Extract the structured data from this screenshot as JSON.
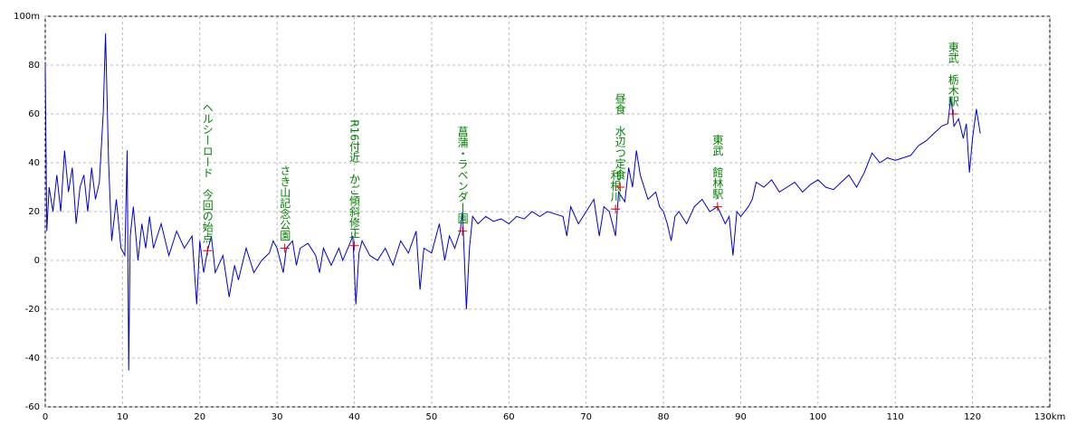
{
  "chart_data": {
    "type": "line",
    "xlim": [
      0,
      130
    ],
    "ylim": [
      -60,
      100
    ],
    "xticks": [
      0,
      10,
      20,
      30,
      40,
      50,
      60,
      70,
      80,
      90,
      100,
      110,
      120,
      {
        "value": 130,
        "label": "130km"
      }
    ],
    "yticks": [
      -60,
      -40,
      -20,
      0,
      20,
      40,
      60,
      80,
      {
        "value": 100,
        "label": "100m"
      }
    ],
    "grid": true,
    "series": [
      {
        "color": "#0000cc",
        "x": [
          0,
          0.2,
          0.5,
          1,
          1.5,
          2,
          2.5,
          3,
          3.5,
          4,
          4.5,
          5,
          5.5,
          6,
          6.5,
          7,
          7.5,
          7.8,
          8.2,
          8.6,
          9.2,
          9.8,
          10.3,
          10.6,
          10.8,
          11,
          11.4,
          12,
          12.5,
          13,
          13.5,
          14,
          15,
          16,
          17,
          18,
          19,
          19.6,
          20,
          20.5,
          21,
          21.5,
          22,
          23,
          23.8,
          24.5,
          25,
          26,
          27,
          28,
          29,
          29.5,
          30,
          30.8,
          31.2,
          32,
          32.5,
          33,
          34,
          35,
          35.5,
          36,
          37,
          38,
          38.5,
          39.3,
          39.8,
          40.2,
          40.6,
          41,
          42,
          43,
          44,
          45,
          46,
          47,
          48,
          48.5,
          49,
          50,
          51,
          51.7,
          52.3,
          53,
          53.7,
          54,
          54.5,
          54.9,
          55.3,
          56,
          57,
          58,
          59,
          60,
          61,
          62,
          63,
          64,
          65,
          66,
          67,
          67.5,
          68,
          69,
          70,
          71,
          71.7,
          72.3,
          73,
          73.8,
          74.2,
          75,
          75.5,
          76,
          76.5,
          77,
          77.5,
          78,
          79,
          79.5,
          80,
          80.5,
          81,
          81.5,
          82,
          83,
          84,
          85,
          86,
          87,
          88,
          88.5,
          89,
          89.5,
          90,
          91,
          91.5,
          92,
          93,
          94,
          95,
          96,
          97,
          98,
          99,
          100,
          101,
          102,
          103,
          104,
          105,
          106,
          107,
          108,
          109,
          110,
          111,
          112,
          113,
          114,
          115,
          116,
          116.8,
          117.2,
          117.6,
          118.2,
          118.8,
          119.2,
          119.6,
          120,
          120.5,
          121
        ],
        "values": [
          80,
          12,
          30,
          20,
          35,
          20,
          45,
          28,
          38,
          15,
          30,
          35,
          20,
          38,
          25,
          32,
          60,
          93,
          40,
          8,
          25,
          5,
          2,
          45,
          -45,
          10,
          22,
          0,
          15,
          5,
          18,
          5,
          15,
          2,
          12,
          5,
          10,
          -18,
          8,
          -5,
          4,
          10,
          -5,
          2,
          -15,
          -2,
          -8,
          5,
          -5,
          0,
          3,
          8,
          5,
          -5,
          5,
          8,
          -2,
          5,
          7,
          2,
          -5,
          5,
          -2,
          5,
          0,
          6,
          10,
          -18,
          3,
          8,
          2,
          0,
          5,
          -2,
          8,
          3,
          12,
          -12,
          5,
          3,
          15,
          0,
          10,
          5,
          12,
          20,
          -20,
          5,
          18,
          15,
          18,
          16,
          17,
          15,
          18,
          17,
          20,
          18,
          20,
          19,
          18,
          10,
          22,
          15,
          20,
          25,
          10,
          22,
          20,
          10,
          28,
          24,
          38,
          30,
          45,
          35,
          30,
          25,
          28,
          22,
          20,
          15,
          8,
          18,
          20,
          15,
          22,
          25,
          20,
          22,
          15,
          18,
          2,
          20,
          18,
          22,
          25,
          32,
          30,
          33,
          28,
          30,
          32,
          28,
          31,
          33,
          30,
          29,
          32,
          35,
          30,
          36,
          44,
          40,
          42,
          41,
          42,
          43,
          47,
          49,
          52,
          55,
          56,
          67,
          55,
          58,
          50,
          56,
          36,
          50,
          62,
          52
        ]
      }
    ],
    "annotations": [
      {
        "text": "ヘルシーロード　今回の始点",
        "x": 21,
        "y": 4
      },
      {
        "text": "さき山記念公園",
        "x": 31,
        "y": 5
      },
      {
        "text": "R16付近　かご傾斜修正",
        "x": 40,
        "y": 6
      },
      {
        "text": "菖蒲・ラベンダー園",
        "x": 54,
        "y": 12
      },
      {
        "text": "利根川",
        "x": 73.8,
        "y": 21
      },
      {
        "text": "昼食　水辺つ定食",
        "x": 74.4,
        "y": 30
      },
      {
        "text": "東武　館林駅",
        "x": 87,
        "y": 22
      },
      {
        "text": "東武　栃木駅",
        "x": 117.5,
        "y": 60
      }
    ]
  }
}
